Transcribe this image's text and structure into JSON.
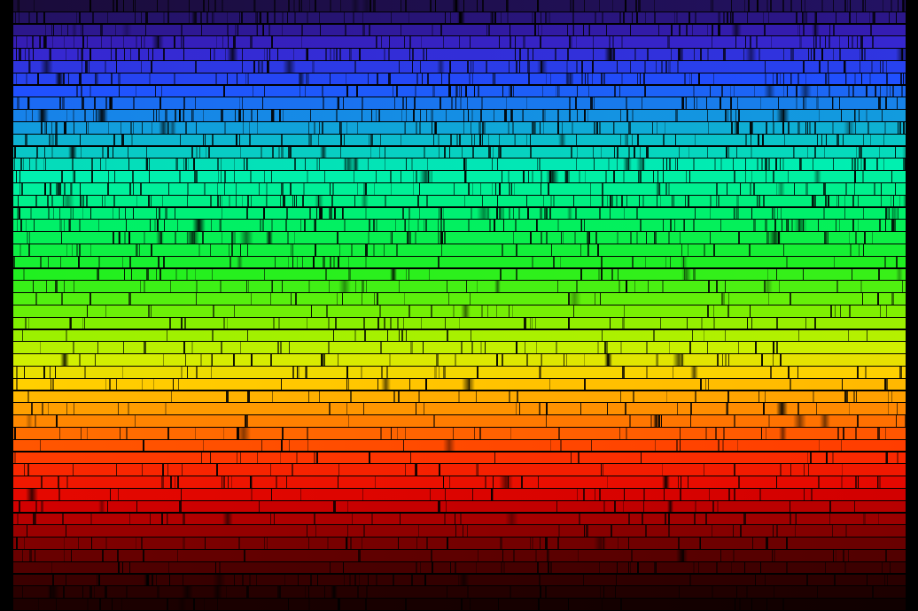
{
  "image": {
    "subject": "solar spectrum",
    "background_color": "#000000",
    "color_stops": [
      {
        "pos": 0.0,
        "color": "#1a0c3a"
      },
      {
        "pos": 0.07,
        "color": "#3a20c8"
      },
      {
        "pos": 0.14,
        "color": "#2050ff"
      },
      {
        "pos": 0.21,
        "color": "#10a8d8"
      },
      {
        "pos": 0.28,
        "color": "#00f0b0"
      },
      {
        "pos": 0.37,
        "color": "#00f060"
      },
      {
        "pos": 0.44,
        "color": "#20f020"
      },
      {
        "pos": 0.52,
        "color": "#80f000"
      },
      {
        "pos": 0.58,
        "color": "#d0f000"
      },
      {
        "pos": 0.62,
        "color": "#ffd000"
      },
      {
        "pos": 0.68,
        "color": "#ff8800"
      },
      {
        "pos": 0.75,
        "color": "#ff3000"
      },
      {
        "pos": 0.81,
        "color": "#e00000"
      },
      {
        "pos": 0.88,
        "color": "#800000"
      },
      {
        "pos": 0.95,
        "color": "#300000"
      },
      {
        "pos": 1.0,
        "color": "#100000"
      }
    ]
  }
}
